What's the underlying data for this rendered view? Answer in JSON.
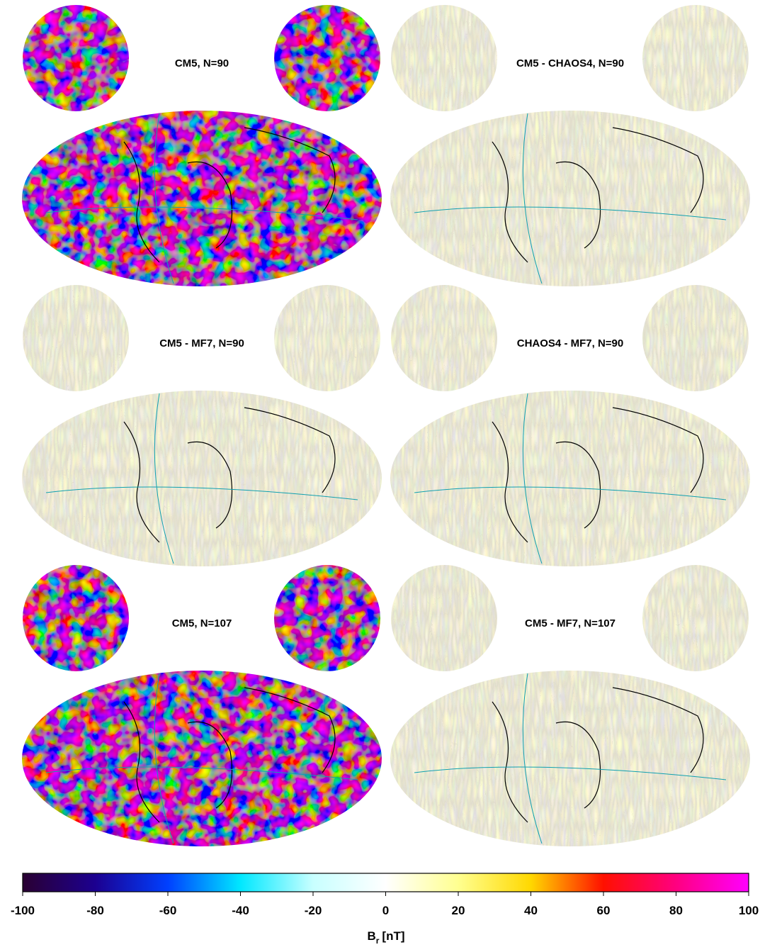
{
  "panels": [
    {
      "title": "CM5, N=90"
    },
    {
      "title": "CM5 - CHAOS4, N=90"
    },
    {
      "title": "CM5 - MF7, N=90"
    },
    {
      "title": "CHAOS4 - MF7, N=90"
    },
    {
      "title": "CM5, N=107"
    },
    {
      "title": "CM5 - MF7, N=107"
    }
  ],
  "colorbar": {
    "xlim": [
      -100,
      100
    ],
    "xticks": [
      -100,
      -80,
      -60,
      -40,
      -20,
      0,
      20,
      40,
      60,
      80,
      100
    ],
    "label": {
      "symbol": "B",
      "subscript": "r",
      "unit": "[nT]"
    }
  }
}
